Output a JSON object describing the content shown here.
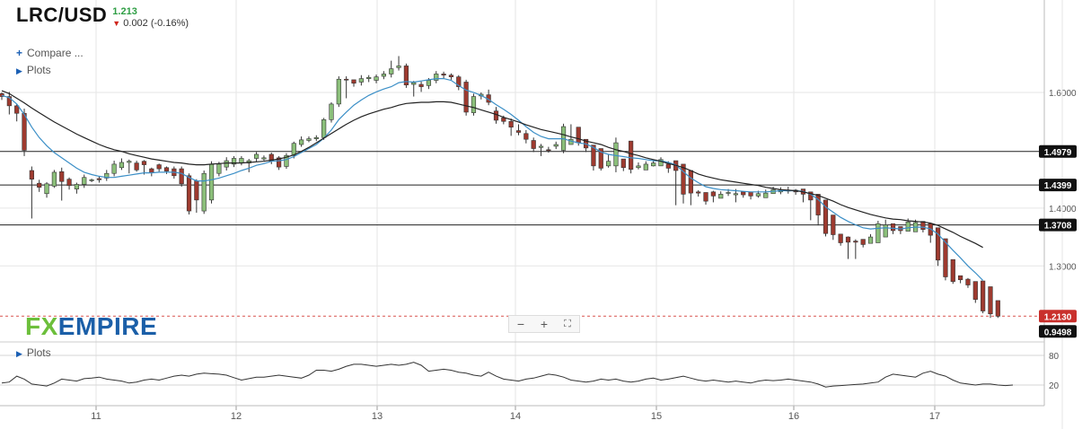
{
  "header": {
    "symbol": "LRC/USD",
    "last_price": "1.213",
    "change": "0.002 (-0.16%)",
    "change_direction": "down"
  },
  "menu": {
    "compare_label": "Compare ...",
    "plots_label": "Plots",
    "lower_plots_label": "Plots"
  },
  "logo": {
    "fx": "FX",
    "empire": "EMPIRE"
  },
  "zoom": {
    "minus": "−",
    "plus": "+",
    "fullscreen": "⛶"
  },
  "colors": {
    "up_candle": "#8bbf7a",
    "down_candle": "#9e3a2f",
    "ma_fast": "#3b8fc7",
    "ma_slow": "#222222",
    "level_line": "#222222",
    "current_line": "#d9534f",
    "level_tag_bg": "#111111",
    "current_tag_bg": "#c9302c"
  },
  "chart_data": {
    "type": "candlestick",
    "title": "LRC/USD",
    "x_ticks": [
      "11",
      "12",
      "13",
      "14",
      "15",
      "16",
      "17"
    ],
    "y_ticks": [
      "1.6000",
      "1.4000",
      "1.3000"
    ],
    "ylim": [
      1.17,
      1.76
    ],
    "levels": [
      {
        "name": "resistance-1",
        "value": 1.4979,
        "label": "1.4979"
      },
      {
        "name": "resistance-2",
        "value": 1.4399,
        "label": "1.4399"
      },
      {
        "name": "support-1",
        "value": 1.3708,
        "label": "1.3708"
      }
    ],
    "current_price": {
      "value": 1.213,
      "label": "1.2130"
    },
    "indicator_tag": "0.9498",
    "candles_open": [
      1.598,
      1.593,
      1.577,
      1.564,
      1.465,
      1.443,
      1.425,
      1.438,
      1.463,
      1.45,
      1.433,
      1.441,
      1.449,
      1.451,
      1.452,
      1.46,
      1.47,
      1.479,
      1.478,
      1.481,
      1.468,
      1.475,
      1.47,
      1.468,
      1.468,
      1.456,
      1.447,
      1.395,
      1.414,
      1.46,
      1.471,
      1.476,
      1.478,
      1.478,
      1.486,
      1.485,
      1.493,
      1.487,
      1.472,
      1.491,
      1.51,
      1.517,
      1.52,
      1.522,
      1.553,
      1.58,
      1.623,
      1.622,
      1.618,
      1.624,
      1.621,
      1.628,
      1.632,
      1.643,
      1.646,
      1.614,
      1.614,
      1.612,
      1.621,
      1.632,
      1.63,
      1.627,
      1.618,
      1.565,
      1.594,
      1.596,
      1.568,
      1.556,
      1.55,
      1.534,
      1.529,
      1.517,
      1.505,
      1.501,
      1.507,
      1.5,
      1.51,
      1.54,
      1.519,
      1.509,
      1.503,
      1.473,
      1.473,
      1.485,
      1.516,
      1.47,
      1.466,
      1.473,
      1.473,
      1.476,
      1.482,
      1.476,
      1.465,
      1.428,
      1.427,
      1.428,
      1.417,
      1.426,
      1.423,
      1.428,
      1.428,
      1.421,
      1.418,
      1.425,
      1.428,
      1.431,
      1.431,
      1.433,
      1.428,
      1.424,
      1.414,
      1.388,
      1.355,
      1.35,
      1.343,
      1.346,
      1.339,
      1.34,
      1.35,
      1.373,
      1.368,
      1.36,
      1.359,
      1.377,
      1.373,
      1.366,
      1.347,
      1.311,
      1.283,
      1.277,
      1.273,
      1.274,
      1.264,
      1.24,
      1.223,
      1.215
    ],
    "candles_close": [
      1.593,
      1.577,
      1.564,
      1.5,
      1.45,
      1.436,
      1.442,
      1.462,
      1.446,
      1.439,
      1.441,
      1.453,
      1.449,
      1.449,
      1.46,
      1.476,
      1.479,
      1.481,
      1.466,
      1.475,
      1.461,
      1.468,
      1.464,
      1.456,
      1.442,
      1.395,
      1.414,
      1.46,
      1.476,
      1.476,
      1.482,
      1.486,
      1.486,
      1.482,
      1.493,
      1.487,
      1.481,
      1.471,
      1.491,
      1.512,
      1.518,
      1.52,
      1.522,
      1.553,
      1.58,
      1.623,
      1.622,
      1.616,
      1.624,
      1.626,
      1.627,
      1.632,
      1.641,
      1.646,
      1.613,
      1.617,
      1.61,
      1.621,
      1.632,
      1.63,
      1.627,
      1.61,
      1.566,
      1.593,
      1.597,
      1.583,
      1.552,
      1.55,
      1.54,
      1.531,
      1.519,
      1.503,
      1.507,
      1.5,
      1.51,
      1.541,
      1.519,
      1.513,
      1.504,
      1.473,
      1.469,
      1.481,
      1.513,
      1.47,
      1.467,
      1.473,
      1.476,
      1.478,
      1.484,
      1.469,
      1.465,
      1.424,
      1.426,
      1.426,
      1.412,
      1.421,
      1.424,
      1.427,
      1.425,
      1.423,
      1.421,
      1.425,
      1.426,
      1.432,
      1.431,
      1.431,
      1.428,
      1.424,
      1.414,
      1.388,
      1.356,
      1.354,
      1.34,
      1.341,
      1.341,
      1.337,
      1.35,
      1.373,
      1.371,
      1.361,
      1.361,
      1.376,
      1.375,
      1.363,
      1.353,
      1.31,
      1.281,
      1.273,
      1.276,
      1.267,
      1.242,
      1.222,
      1.217,
      1.213
    ],
    "candles_high": [
      1.6,
      1.601,
      1.58,
      1.572,
      1.472,
      1.449,
      1.445,
      1.466,
      1.47,
      1.453,
      1.444,
      1.458,
      1.451,
      1.455,
      1.466,
      1.482,
      1.486,
      1.484,
      1.482,
      1.483,
      1.47,
      1.477,
      1.472,
      1.472,
      1.472,
      1.46,
      1.45,
      1.465,
      1.481,
      1.48,
      1.488,
      1.49,
      1.49,
      1.485,
      1.497,
      1.491,
      1.496,
      1.49,
      1.495,
      1.515,
      1.524,
      1.524,
      1.526,
      1.556,
      1.583,
      1.628,
      1.628,
      1.621,
      1.63,
      1.63,
      1.631,
      1.637,
      1.655,
      1.663,
      1.65,
      1.62,
      1.619,
      1.625,
      1.637,
      1.636,
      1.633,
      1.63,
      1.622,
      1.598,
      1.6,
      1.605,
      1.575,
      1.56,
      1.555,
      1.545,
      1.535,
      1.522,
      1.511,
      1.506,
      1.515,
      1.546,
      1.545,
      1.516,
      1.508,
      1.48,
      1.478,
      1.493,
      1.522,
      1.476,
      1.472,
      1.479,
      1.481,
      1.483,
      1.488,
      1.481,
      1.47,
      1.435,
      1.432,
      1.431,
      1.42,
      1.43,
      1.429,
      1.433,
      1.433,
      1.427,
      1.426,
      1.43,
      1.432,
      1.437,
      1.436,
      1.437,
      1.433,
      1.43,
      1.418,
      1.395,
      1.362,
      1.359,
      1.348,
      1.351,
      1.346,
      1.343,
      1.355,
      1.378,
      1.38,
      1.366,
      1.364,
      1.382,
      1.38,
      1.372,
      1.359,
      1.315,
      1.29,
      1.281,
      1.28,
      1.279,
      1.268,
      1.246,
      1.227,
      1.22
    ],
    "candles_low": [
      1.587,
      1.562,
      1.55,
      1.49,
      1.382,
      1.428,
      1.418,
      1.435,
      1.413,
      1.432,
      1.425,
      1.435,
      1.445,
      1.444,
      1.447,
      1.455,
      1.466,
      1.46,
      1.463,
      1.458,
      1.455,
      1.463,
      1.459,
      1.451,
      1.437,
      1.389,
      1.392,
      1.39,
      1.408,
      1.455,
      1.465,
      1.471,
      1.474,
      1.462,
      1.48,
      1.482,
      1.476,
      1.466,
      1.468,
      1.486,
      1.506,
      1.514,
      1.516,
      1.518,
      1.548,
      1.575,
      1.59,
      1.61,
      1.612,
      1.618,
      1.616,
      1.623,
      1.626,
      1.638,
      1.608,
      1.593,
      1.601,
      1.606,
      1.616,
      1.624,
      1.622,
      1.604,
      1.56,
      1.56,
      1.588,
      1.578,
      1.546,
      1.545,
      1.525,
      1.526,
      1.512,
      1.497,
      1.49,
      1.496,
      1.502,
      1.495,
      1.512,
      1.508,
      1.497,
      1.465,
      1.465,
      1.47,
      1.462,
      1.464,
      1.46,
      1.467,
      1.468,
      1.472,
      1.478,
      1.461,
      1.405,
      1.408,
      1.405,
      1.42,
      1.406,
      1.41,
      1.418,
      1.421,
      1.41,
      1.418,
      1.415,
      1.418,
      1.42,
      1.426,
      1.424,
      1.425,
      1.423,
      1.41,
      1.379,
      1.37,
      1.351,
      1.345,
      1.335,
      1.312,
      1.312,
      1.332,
      1.345,
      1.365,
      1.364,
      1.355,
      1.355,
      1.363,
      1.368,
      1.358,
      1.34,
      1.3,
      1.275,
      1.269,
      1.27,
      1.262,
      1.236,
      1.218,
      1.21,
      1.21
    ],
    "ma_fast": [
      1.595,
      1.591,
      1.58,
      1.562,
      1.54,
      1.522,
      1.508,
      1.496,
      1.487,
      1.478,
      1.469,
      1.462,
      1.458,
      1.455,
      1.453,
      1.453,
      1.455,
      1.457,
      1.459,
      1.461,
      1.461,
      1.462,
      1.462,
      1.462,
      1.46,
      1.453,
      1.447,
      1.447,
      1.449,
      1.452,
      1.456,
      1.46,
      1.465,
      1.469,
      1.474,
      1.477,
      1.481,
      1.482,
      1.484,
      1.489,
      1.496,
      1.503,
      1.51,
      1.521,
      1.535,
      1.553,
      1.566,
      1.578,
      1.587,
      1.595,
      1.601,
      1.606,
      1.61,
      1.617,
      1.619,
      1.618,
      1.62,
      1.622,
      1.624,
      1.624,
      1.621,
      1.612,
      1.604,
      1.6,
      1.595,
      1.588,
      1.579,
      1.571,
      1.562,
      1.552,
      1.541,
      1.531,
      1.524,
      1.52,
      1.52,
      1.52,
      1.516,
      1.513,
      1.511,
      1.505,
      1.497,
      1.493,
      1.491,
      1.489,
      1.487,
      1.486,
      1.484,
      1.482,
      1.482,
      1.479,
      1.475,
      1.463,
      1.452,
      1.444,
      1.437,
      1.434,
      1.432,
      1.431,
      1.43,
      1.429,
      1.428,
      1.428,
      1.428,
      1.429,
      1.43,
      1.43,
      1.43,
      1.429,
      1.424,
      1.415,
      1.402,
      1.393,
      1.384,
      1.377,
      1.371,
      1.366,
      1.364,
      1.365,
      1.366,
      1.365,
      1.364,
      1.366,
      1.367,
      1.367,
      1.364,
      1.355,
      1.341,
      1.327,
      1.314,
      1.3,
      1.288,
      1.275
    ],
    "ma_slow": [
      1.603,
      1.598,
      1.59,
      1.582,
      1.573,
      1.565,
      1.557,
      1.549,
      1.542,
      1.535,
      1.528,
      1.522,
      1.516,
      1.51,
      1.505,
      1.501,
      1.498,
      1.494,
      1.491,
      1.488,
      1.485,
      1.483,
      1.481,
      1.479,
      1.478,
      1.476,
      1.475,
      1.475,
      1.476,
      1.477,
      1.478,
      1.478,
      1.478,
      1.479,
      1.48,
      1.481,
      1.483,
      1.485,
      1.488,
      1.492,
      1.498,
      1.505,
      1.513,
      1.521,
      1.529,
      1.537,
      1.545,
      1.552,
      1.558,
      1.563,
      1.567,
      1.571,
      1.574,
      1.578,
      1.581,
      1.582,
      1.583,
      1.583,
      1.584,
      1.584,
      1.583,
      1.58,
      1.577,
      1.574,
      1.57,
      1.566,
      1.562,
      1.557,
      1.553,
      1.549,
      1.544,
      1.54,
      1.536,
      1.533,
      1.53,
      1.527,
      1.523,
      1.52,
      1.516,
      1.513,
      1.51,
      1.505,
      1.501,
      1.498,
      1.494,
      1.491,
      1.487,
      1.484,
      1.481,
      1.477,
      1.474,
      1.47,
      1.465,
      1.459,
      1.455,
      1.452,
      1.449,
      1.447,
      1.445,
      1.443,
      1.441,
      1.439,
      1.436,
      1.434,
      1.432,
      1.431,
      1.43,
      1.428,
      1.425,
      1.422,
      1.417,
      1.412,
      1.406,
      1.401,
      1.397,
      1.393,
      1.389,
      1.386,
      1.383,
      1.381,
      1.38,
      1.378,
      1.377,
      1.376,
      1.374,
      1.37,
      1.364,
      1.358,
      1.351,
      1.345,
      1.339,
      1.332
    ],
    "oscillator": {
      "label": "Plots",
      "y_ticks": [
        "80",
        "20"
      ],
      "ylim": [
        0,
        100
      ],
      "values": [
        24,
        26,
        38,
        32,
        22,
        20,
        18,
        24,
        32,
        30,
        28,
        33,
        34,
        36,
        32,
        30,
        28,
        24,
        26,
        30,
        32,
        30,
        34,
        38,
        40,
        38,
        42,
        44,
        43,
        42,
        40,
        35,
        30,
        33,
        36,
        36,
        38,
        40,
        38,
        36,
        34,
        40,
        50,
        50,
        48,
        52,
        58,
        62,
        62,
        60,
        58,
        60,
        62,
        60,
        62,
        66,
        60,
        48,
        50,
        52,
        50,
        46,
        44,
        40,
        38,
        46,
        38,
        32,
        30,
        28,
        32,
        34,
        38,
        42,
        40,
        36,
        30,
        28,
        26,
        28,
        32,
        30,
        32,
        28,
        26,
        28,
        32,
        34,
        30,
        32,
        35,
        38,
        34,
        30,
        28,
        30,
        28,
        26,
        28,
        26,
        24,
        28,
        30,
        29,
        30,
        32,
        30,
        28,
        26,
        22,
        16,
        18,
        19,
        20,
        21,
        22,
        24,
        26,
        36,
        42,
        40,
        38,
        36,
        44,
        48,
        42,
        38,
        30,
        24,
        22,
        20,
        22,
        22,
        20,
        19,
        20
      ]
    }
  }
}
